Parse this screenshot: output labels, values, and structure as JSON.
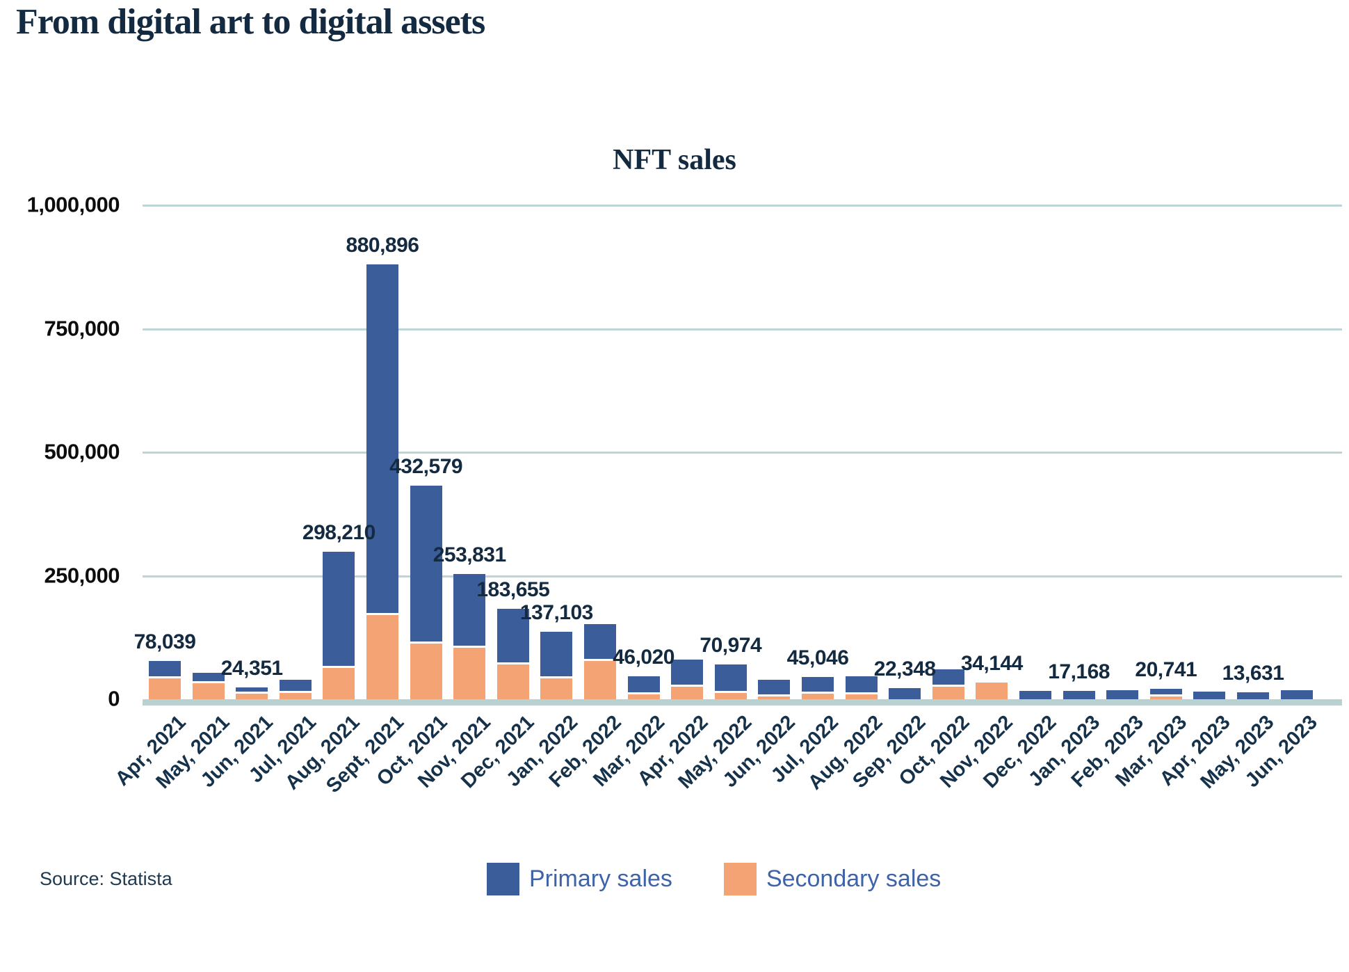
{
  "page": {
    "title": "From digital art to digital assets",
    "source": "Source: Statista"
  },
  "chart_data": {
    "type": "bar",
    "stacked": true,
    "title": "NFT sales",
    "xlabel": "",
    "ylabel": "",
    "ylim": [
      0,
      1000000
    ],
    "grid": true,
    "legend_position": "bottom",
    "y_ticks": [
      "1,000,000",
      "750,000",
      "500,000",
      "250,000",
      "0"
    ],
    "y_tick_values": [
      1000000,
      750000,
      500000,
      250000,
      0
    ],
    "categories": [
      "Apr, 2021",
      "May, 2021",
      "Jun, 2021",
      "Jul, 2021",
      "Aug, 2021",
      "Sept, 2021",
      "Oct, 2021",
      "Nov, 2021",
      "Dec, 2021",
      "Jan, 2022",
      "Feb, 2022",
      "Mar, 2022",
      "Apr, 2022",
      "May, 2022",
      "Jun, 2022",
      "Jul, 2022",
      "Aug, 2022",
      "Sep, 2022",
      "Oct, 2022",
      "Nov, 2022",
      "Dec, 2022",
      "Jan, 2023",
      "Feb, 2023",
      "Mar, 2023",
      "Apr, 2023",
      "May, 2023",
      "Jun, 2023"
    ],
    "series": [
      {
        "name": "Primary sales",
        "color": "#3b5d99",
        "values": [
          36039,
          20000,
          13151,
          27000,
          235210,
          710896,
          320579,
          149831,
          113655,
          95103,
          74000,
          36020,
          54000,
          57974,
          33000,
          34046,
          36000,
          22348,
          35000,
          0,
          17000,
          17168,
          18000,
          15741,
          16000,
          13631,
          19000
        ]
      },
      {
        "name": "Secondary sales",
        "color": "#f3a374",
        "values": [
          42000,
          33000,
          11200,
          12000,
          63000,
          170000,
          112000,
          104000,
          70000,
          42000,
          78000,
          10000,
          26000,
          13000,
          6000,
          11000,
          10000,
          0,
          25000,
          34144,
          0,
          0,
          0,
          5000,
          0,
          0,
          0
        ]
      }
    ],
    "totals_labels": [
      "78,039",
      null,
      "24,351",
      null,
      "298,210",
      "880,896",
      "432,579",
      "253,831",
      "183,655",
      "137,103",
      null,
      "46,020",
      null,
      "70,974",
      null,
      "45,046",
      null,
      "22,348",
      null,
      "34,144",
      null,
      "17,168",
      null,
      "20,741",
      null,
      "13,631",
      null
    ],
    "colors": {
      "primary_bar": "#3b5d99",
      "secondary_bar": "#f3a374",
      "gridline": "#bdd5d6",
      "baseline": "#b9d2d1",
      "label_text": "#132a40",
      "legend_text": "#3f63a8"
    }
  }
}
